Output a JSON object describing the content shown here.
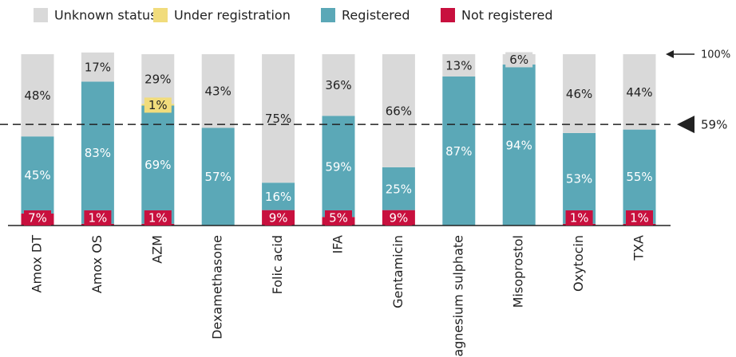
{
  "chart_data": {
    "type": "stacked_bar",
    "categories": [
      "Amox DT",
      "Amox OS",
      "AZM",
      "Dexamethasone",
      "Folic acid",
      "IFA",
      "Gentamicin",
      "Magnesium sulphate",
      "Misoprostol",
      "Oxytocin",
      "TXA"
    ],
    "series": [
      {
        "name": "Not registered",
        "color": "#c8103e",
        "values": [
          7,
          1,
          1,
          null,
          9,
          5,
          9,
          null,
          null,
          1,
          1
        ],
        "value_labels": [
          "7%",
          "1%",
          "1%",
          null,
          "9%",
          "5%",
          "9%",
          null,
          null,
          "1%",
          "1%"
        ]
      },
      {
        "name": "Registered",
        "color": "#5ba8b7",
        "values": [
          45,
          83,
          69,
          57,
          16,
          59,
          25,
          87,
          94,
          53,
          55
        ],
        "value_labels": [
          "45%",
          "83%",
          "69%",
          "57%",
          "16%",
          "59%",
          "25%",
          "87%",
          "94%",
          "53%",
          "55%"
        ]
      },
      {
        "name": "Under registration",
        "color": "#f1dc7c",
        "values": [
          null,
          null,
          1,
          null,
          null,
          null,
          null,
          null,
          null,
          null,
          null
        ],
        "value_labels": [
          null,
          null,
          "1%",
          null,
          null,
          null,
          null,
          null,
          null,
          null,
          null
        ]
      },
      {
        "name": "Unknown status",
        "color": "#d9d9d9",
        "values": [
          48,
          17,
          29,
          43,
          75,
          36,
          66,
          13,
          6,
          46,
          44
        ],
        "value_labels": [
          "48%",
          "17%",
          "29%",
          "43%",
          "75%",
          "36%",
          "66%",
          "13%",
          "6%",
          "46%",
          "44%"
        ]
      }
    ],
    "legend_order": [
      "Unknown status",
      "Under registration",
      "Registered",
      "Not registered"
    ],
    "ylim": [
      0,
      100
    ],
    "reference_lines": [
      {
        "value": 100,
        "label": "100%"
      },
      {
        "value": 59,
        "label": "59%"
      }
    ]
  }
}
